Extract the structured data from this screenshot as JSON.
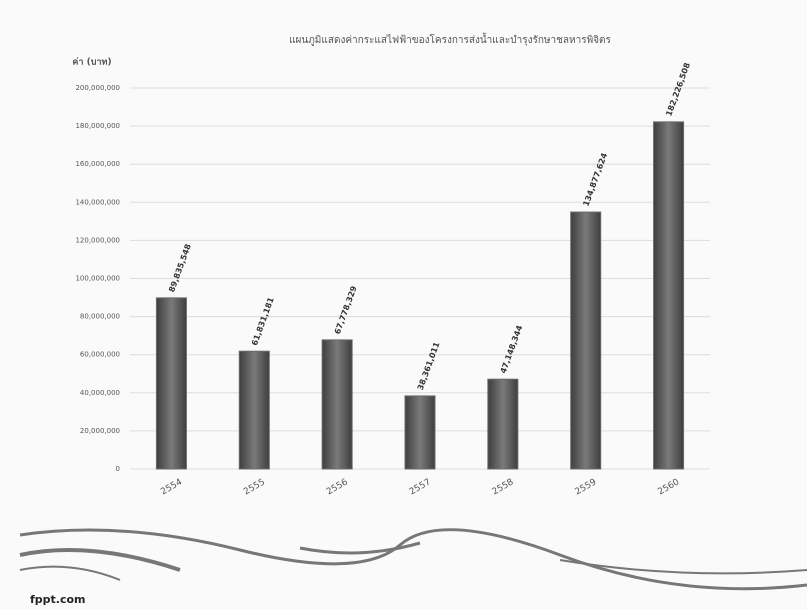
{
  "chart_data": {
    "type": "bar",
    "title": "แผนภูมิแสดงค่ากระแสไฟฟ้าของโครงการส่งน้ำและบำรุงรักษาชลหารพิจิตร",
    "y_label": "ค่า (บาท)",
    "categories": [
      "2554",
      "2555",
      "2556",
      "2557",
      "2558",
      "2559",
      "2560"
    ],
    "values": [
      89835548,
      61831181,
      67778329,
      38361011,
      47148344,
      134877624,
      182226508
    ],
    "value_labels": [
      "89,835,548",
      "61,831,181",
      "67,778,329",
      "38,361,011",
      "47,148,344",
      "134,877,624",
      "182,226,508"
    ],
    "color": "#6a6a6a",
    "ylim": [
      0,
      200000000
    ],
    "yticks": [
      0,
      {
        "value": 20000000,
        "label": "20,000,000"
      },
      {
        "value": 40000000,
        "label": "40,000,000"
      },
      {
        "value": 60000000,
        "label": "60,000,000"
      },
      {
        "value": 80000000,
        "label": "80,000,000"
      },
      {
        "value": 100000000,
        "label": "100,000,000"
      },
      {
        "value": 120000000,
        "label": "120,000,000"
      },
      {
        "value": 140000000,
        "label": "140,000,000"
      },
      {
        "value": 160000000,
        "label": "160,000,000"
      },
      {
        "value": 180000000,
        "label": "180,000,000"
      },
      {
        "value": 200000000,
        "label": "200,000,000"
      }
    ],
    "grid": true
  },
  "footer": "fppt.com"
}
